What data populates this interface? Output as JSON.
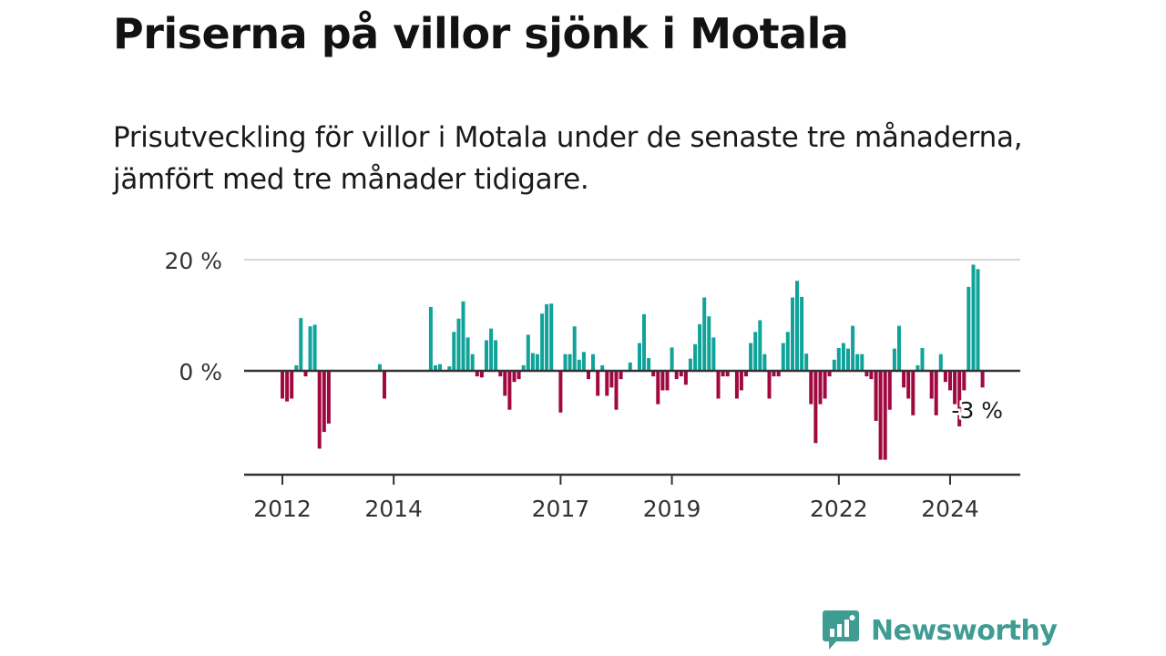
{
  "title": "Priserna på villor sjönk i Motala",
  "subtitle": "Prisutveckling för villor i Motala under de senaste tre månaderna, jämfört med tre månader tidigare.",
  "brand": {
    "name": "Newsworthy",
    "color": "#3f9c93"
  },
  "colors": {
    "positive": "#0fa39a",
    "negative": "#a0083f",
    "axis": "#333333",
    "grid": "#d8d8d8"
  },
  "chart_data": {
    "type": "bar",
    "title": "Priserna på villor sjönk i Motala",
    "xlabel": "",
    "ylabel": "",
    "unit": "%",
    "ylim": [
      -18,
      21
    ],
    "xlim": [
      2011.8,
      2025.7
    ],
    "yticks": [
      {
        "value": 0,
        "label": "0 %"
      },
      {
        "value": 20,
        "label": "20 %"
      }
    ],
    "xticks": [
      {
        "value": 2012,
        "label": "2012"
      },
      {
        "value": 2014,
        "label": "2014"
      },
      {
        "value": 2017,
        "label": "2017"
      },
      {
        "value": 2019,
        "label": "2019"
      },
      {
        "value": 2022,
        "label": "2022"
      },
      {
        "value": 2024,
        "label": "2024"
      }
    ],
    "grid": true,
    "annotation": {
      "text": "-3 %",
      "value": -3,
      "x": 2024.58
    },
    "x": [
      2012.0,
      2012.083,
      2012.167,
      2012.25,
      2012.333,
      2012.417,
      2012.5,
      2012.583,
      2012.667,
      2012.75,
      2012.833,
      2012.917,
      2013.75,
      2013.833,
      2014.667,
      2014.75,
      2014.833,
      2014.917,
      2015.0,
      2015.083,
      2015.167,
      2015.25,
      2015.333,
      2015.417,
      2015.5,
      2015.583,
      2015.667,
      2015.75,
      2015.833,
      2015.917,
      2016.0,
      2016.083,
      2016.167,
      2016.25,
      2016.333,
      2016.417,
      2016.5,
      2016.583,
      2016.667,
      2016.75,
      2016.833,
      2016.917,
      2017.0,
      2017.083,
      2017.167,
      2017.25,
      2017.333,
      2017.417,
      2017.5,
      2017.583,
      2017.667,
      2017.75,
      2017.833,
      2017.917,
      2018.0,
      2018.083,
      2018.167,
      2018.25,
      2018.333,
      2018.417,
      2018.5,
      2018.583,
      2018.667,
      2018.75,
      2018.833,
      2018.917,
      2019.0,
      2019.083,
      2019.167,
      2019.25,
      2019.333,
      2019.417,
      2019.5,
      2019.583,
      2019.667,
      2019.75,
      2019.833,
      2019.917,
      2020.0,
      2020.083,
      2020.167,
      2020.25,
      2020.333,
      2020.417,
      2020.5,
      2020.583,
      2020.667,
      2020.75,
      2020.833,
      2020.917,
      2021.0,
      2021.083,
      2021.167,
      2021.25,
      2021.333,
      2021.417,
      2021.5,
      2021.583,
      2021.667,
      2021.75,
      2021.833,
      2021.917,
      2022.0,
      2022.083,
      2022.167,
      2022.25,
      2022.333,
      2022.417,
      2022.5,
      2022.583,
      2022.667,
      2022.75,
      2022.833,
      2022.917,
      2023.0,
      2023.083,
      2023.167,
      2023.25,
      2023.333,
      2023.417,
      2023.5,
      2023.583,
      2023.667,
      2023.75,
      2023.833,
      2023.917,
      2024.0,
      2024.083,
      2024.167,
      2024.25,
      2024.333,
      2024.417,
      2024.5,
      2024.583
    ],
    "values": [
      -5,
      -5.5,
      -5,
      1,
      9.5,
      -1,
      8,
      8.3,
      -14,
      -11,
      -9.5,
      0,
      1.2,
      -5,
      11.5,
      1,
      1.2,
      0,
      0.8,
      7,
      9.4,
      12.5,
      6,
      3,
      -1,
      -1.2,
      5.5,
      7.6,
      5.5,
      -1,
      -4.5,
      -7,
      -2,
      -1.5,
      1,
      6.5,
      3.2,
      3,
      10.3,
      12,
      12.1,
      0,
      -7.5,
      3,
      3,
      8,
      2,
      3.4,
      -1.5,
      3,
      -4.5,
      1,
      -4.5,
      -3,
      -7,
      -1.5,
      0,
      1.5,
      0,
      5,
      10.2,
      2.3,
      -1,
      -6,
      -3.5,
      -3.5,
      4.2,
      -1.5,
      -1,
      -2.5,
      2.2,
      4.8,
      8.4,
      13.2,
      9.8,
      6,
      -5,
      -1,
      -1,
      0,
      -5,
      -3.5,
      -1,
      5,
      7,
      9.1,
      3,
      -5,
      -1,
      -1,
      5,
      7,
      13.2,
      16.2,
      13.3,
      3.1,
      -6,
      -13,
      -6,
      -5,
      -1,
      2,
      4.1,
      5,
      4,
      8.1,
      3,
      3,
      -1,
      -1.5,
      -9,
      -16,
      -16,
      -7,
      4,
      8.1,
      -3,
      -5,
      -8,
      1,
      4.1,
      0,
      -5,
      -8,
      3,
      -2,
      -3.5,
      -6,
      -10,
      -3.5,
      15.1,
      19.1,
      18.3,
      -3
    ]
  }
}
